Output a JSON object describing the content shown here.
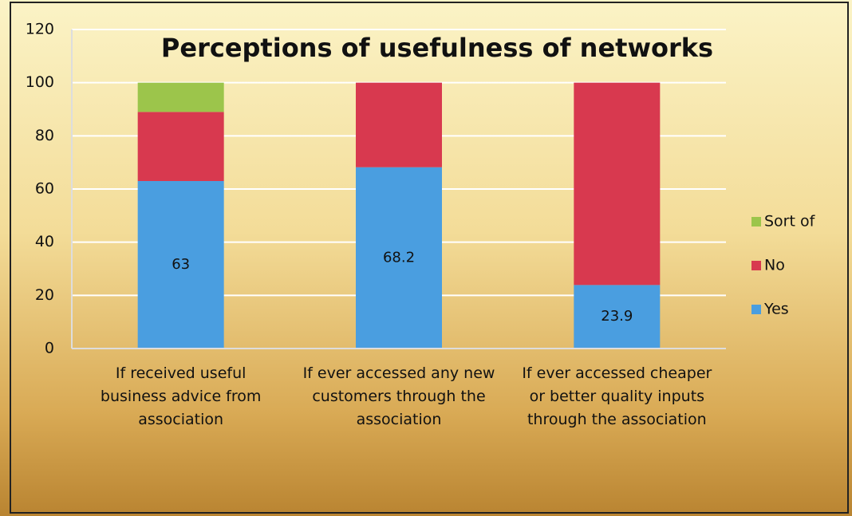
{
  "chart_data": {
    "type": "stacked_bar",
    "title": "Perceptions of usefulness of networks",
    "categories": [
      "If received useful business advice from association",
      "If ever accessed any new customers through the association",
      "If ever accessed cheaper or better quality inputs through the association"
    ],
    "series": [
      {
        "name": "Yes",
        "color": "#4a9ee0",
        "values": [
          63,
          68.2,
          23.9
        ],
        "show_labels": true
      },
      {
        "name": "No",
        "color": "#d8394f",
        "values": [
          26,
          31.8,
          76.1
        ]
      },
      {
        "name": "Sort of",
        "color": "#9cc54b",
        "values": [
          11,
          0,
          0
        ]
      }
    ],
    "ylim": [
      0,
      120
    ],
    "yticks": [
      0,
      20,
      40,
      60,
      80,
      100,
      120
    ],
    "grid": true,
    "legend": "right"
  }
}
